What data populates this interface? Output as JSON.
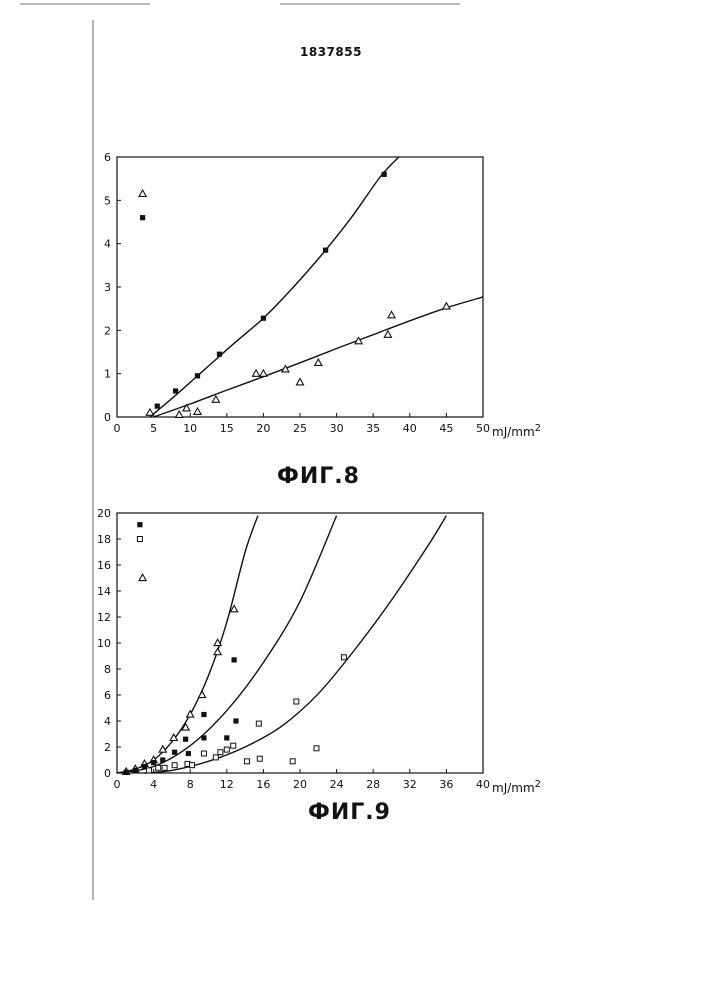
{
  "page": {
    "document_number": "1837855"
  },
  "chart_data": [
    {
      "type": "scatter",
      "caption": "ФИГ.8",
      "xlabel": "mJ/mm",
      "xlabel_sup": "2",
      "ylabel": "",
      "xlim": [
        0,
        50
      ],
      "ylim": [
        0,
        6
      ],
      "x_ticks": [
        0,
        5,
        10,
        15,
        20,
        25,
        30,
        35,
        40,
        45,
        50
      ],
      "y_ticks": [
        0,
        1,
        2,
        3,
        4,
        5,
        6
      ],
      "grid": false,
      "legend": [
        {
          "marker": "triangle",
          "x": 3.5,
          "y": 5.15
        },
        {
          "marker": "filled-square",
          "x": 3.5,
          "y": 4.6
        }
      ],
      "series": [
        {
          "marker": "filled-square",
          "points": [
            [
              5.5,
              0.25
            ],
            [
              8,
              0.6
            ],
            [
              11,
              0.95
            ],
            [
              14,
              1.45
            ],
            [
              20,
              2.28
            ],
            [
              28.5,
              3.85
            ],
            [
              36.5,
              5.6
            ]
          ],
          "fit": [
            [
              4.5,
              0
            ],
            [
              8,
              0.5
            ],
            [
              12,
              1.1
            ],
            [
              16,
              1.7
            ],
            [
              20,
              2.28
            ],
            [
              24,
              2.98
            ],
            [
              28,
              3.75
            ],
            [
              32,
              4.6
            ],
            [
              36,
              5.55
            ],
            [
              38.5,
              6.0
            ]
          ]
        },
        {
          "marker": "triangle",
          "points": [
            [
              4.5,
              0.1
            ],
            [
              8.5,
              0.05
            ],
            [
              9.5,
              0.2
            ],
            [
              11,
              0.12
            ],
            [
              13.5,
              0.4
            ],
            [
              19,
              1.0
            ],
            [
              20,
              1.0
            ],
            [
              23,
              1.1
            ],
            [
              25,
              0.8
            ],
            [
              27.5,
              1.25
            ],
            [
              33,
              1.75
            ],
            [
              37,
              1.9
            ],
            [
              37.5,
              2.35
            ],
            [
              45,
              2.55
            ]
          ],
          "fit": [
            [
              5,
              0
            ],
            [
              10,
              0.3
            ],
            [
              15,
              0.62
            ],
            [
              20,
              0.93
            ],
            [
              25,
              1.25
            ],
            [
              30,
              1.58
            ],
            [
              35,
              1.9
            ],
            [
              40,
              2.22
            ],
            [
              45,
              2.52
            ],
            [
              50,
              2.77
            ]
          ]
        }
      ]
    },
    {
      "type": "scatter",
      "caption": "ФИГ.9",
      "xlabel": "mJ/mm",
      "xlabel_sup": "2",
      "ylabel": "",
      "xlim": [
        0,
        40
      ],
      "ylim": [
        0,
        20
      ],
      "x_ticks": [
        0,
        4,
        8,
        12,
        16,
        20,
        24,
        28,
        32,
        36,
        40
      ],
      "y_ticks": [
        0,
        2,
        4,
        6,
        8,
        10,
        12,
        14,
        16,
        18,
        20
      ],
      "grid": false,
      "legend": [
        {
          "marker": "filled-square",
          "x": 2.5,
          "y": 19.1
        },
        {
          "marker": "open-square",
          "x": 2.5,
          "y": 18.0
        },
        {
          "marker": "triangle",
          "x": 2.8,
          "y": 15.0
        }
      ],
      "series": [
        {
          "marker": "triangle",
          "points": [
            [
              1,
              0.1
            ],
            [
              2,
              0.3
            ],
            [
              3,
              0.7
            ],
            [
              4,
              1.0
            ],
            [
              5,
              1.8
            ],
            [
              6.2,
              2.7
            ],
            [
              7.5,
              3.5
            ],
            [
              8,
              4.5
            ],
            [
              9.3,
              6.0
            ],
            [
              11,
              9.3
            ],
            [
              11,
              10.0
            ],
            [
              12.8,
              12.6
            ]
          ],
          "fit": [
            [
              0,
              0
            ],
            [
              2,
              0.3
            ],
            [
              4,
              1.0
            ],
            [
              6,
              2.4
            ],
            [
              8,
              4.5
            ],
            [
              10,
              7.5
            ],
            [
              12,
              11.6
            ],
            [
              14,
              17.0
            ],
            [
              15.4,
              19.8
            ]
          ]
        },
        {
          "marker": "filled-square",
          "points": [
            [
              1,
              0.05
            ],
            [
              2,
              0.2
            ],
            [
              3,
              0.5
            ],
            [
              4,
              0.8
            ],
            [
              5,
              1.0
            ],
            [
              6.3,
              1.6
            ],
            [
              7.8,
              1.5
            ],
            [
              7.5,
              2.6
            ],
            [
              9.5,
              2.7
            ],
            [
              9.5,
              4.5
            ],
            [
              12,
              2.7
            ],
            [
              13,
              4.0
            ],
            [
              12.8,
              8.7
            ]
          ],
          "fit": [
            [
              0,
              0
            ],
            [
              4,
              0.5
            ],
            [
              8,
              2.1
            ],
            [
              12,
              4.8
            ],
            [
              16,
              8.5
            ],
            [
              20,
              13.2
            ],
            [
              24,
              19.8
            ]
          ]
        },
        {
          "marker": "open-square",
          "points": [
            [
              3.5,
              0.2
            ],
            [
              4.5,
              0.4
            ],
            [
              5.2,
              0.4
            ],
            [
              6.3,
              0.6
            ],
            [
              7.7,
              0.7
            ],
            [
              8.2,
              0.6
            ],
            [
              9.5,
              1.5
            ],
            [
              10.8,
              1.2
            ],
            [
              11.3,
              1.6
            ],
            [
              12,
              1.8
            ],
            [
              12.7,
              2.1
            ],
            [
              14.2,
              0.9
            ],
            [
              15.6,
              1.1
            ],
            [
              15.5,
              3.8
            ],
            [
              19.2,
              0.9
            ],
            [
              19.6,
              5.5
            ],
            [
              21.8,
              1.9
            ],
            [
              24.8,
              8.9
            ]
          ],
          "fit": [
            [
              3,
              0
            ],
            [
              6,
              0.2
            ],
            [
              10,
              0.9
            ],
            [
              14,
              2.0
            ],
            [
              18,
              3.6
            ],
            [
              22,
              6.1
            ],
            [
              26,
              9.5
            ],
            [
              30,
              13.3
            ],
            [
              34,
              17.5
            ],
            [
              36,
              19.8
            ]
          ]
        }
      ]
    }
  ]
}
